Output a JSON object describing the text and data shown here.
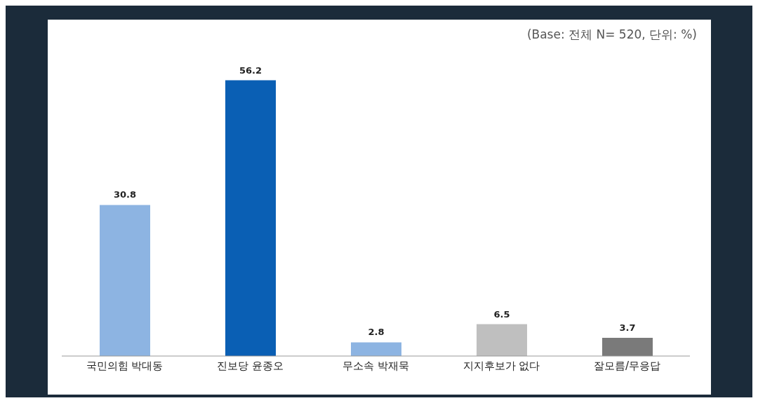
{
  "chart_data": {
    "type": "bar",
    "annotations": [
      "(Base: 전체 N= 520, 단위: %)"
    ],
    "categories": [
      "국민의힘 박대동",
      "진보당 윤종오",
      "무소속 박재묵",
      "지지후보가 없다",
      "잘모름/무응답"
    ],
    "values": [
      30.8,
      56.2,
      2.8,
      6.5,
      3.7
    ],
    "colors": [
      "#8db4e2",
      "#0a5fb4",
      "#8db4e2",
      "#bfbfbf",
      "#7a7a7a"
    ],
    "data_labels": true,
    "grid": false,
    "legend": false
  }
}
